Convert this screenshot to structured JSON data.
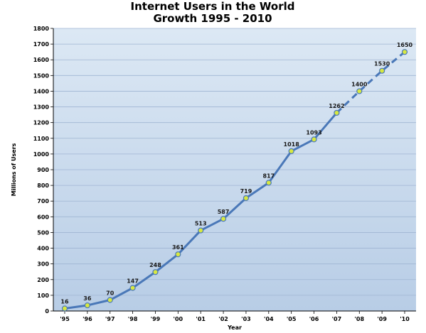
{
  "chart_data": {
    "type": "line",
    "title": "Internet Users in the World",
    "subtitle": "Growth 1995 - 2010",
    "xlabel": "Year",
    "ylabel": "Millions of Users",
    "categories": [
      "'95",
      "'96",
      "'97",
      "'98",
      "'99",
      "'00",
      "'01",
      "'02",
      "'03",
      "'04",
      "'05",
      "'06",
      "'07",
      "'08",
      "'09",
      "'10"
    ],
    "values": [
      16,
      36,
      70,
      147,
      248,
      361,
      513,
      587,
      719,
      817,
      1018,
      1093,
      1262,
      1400,
      1530,
      1650
    ],
    "data_labels": [
      "16",
      "36",
      "70",
      "147",
      "248",
      "361",
      "513",
      "587",
      "719",
      "817",
      "1018",
      "1093",
      "1262",
      "1400",
      "1530",
      "1650"
    ],
    "projected_from_index": 12,
    "ylim": [
      0,
      1800
    ],
    "yticks": [
      0,
      100,
      200,
      300,
      400,
      500,
      600,
      700,
      800,
      900,
      1000,
      1100,
      1200,
      1300,
      1400,
      1500,
      1600,
      1700,
      1800
    ],
    "grid": true,
    "colors": {
      "line": "#4a78b8",
      "marker_fill": "#d8e840",
      "marker_stroke": "#4a78b8",
      "plot_background_top": "#dce8f4",
      "plot_background_bottom": "#b8cde6",
      "grid": "#9fb5d3"
    }
  }
}
